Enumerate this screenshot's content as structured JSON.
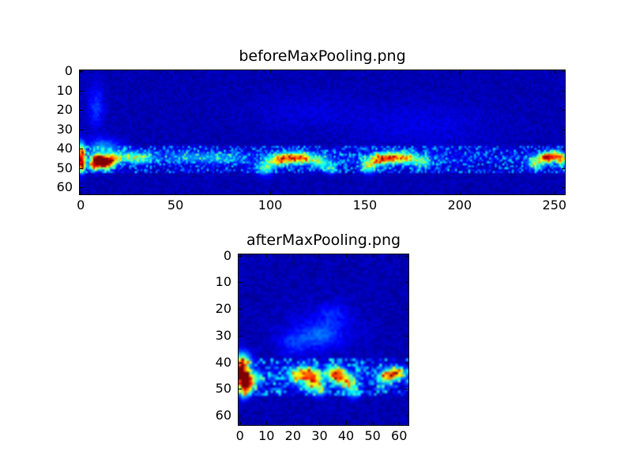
{
  "figure": {
    "background": "#ffffff",
    "frame_color": "#000000",
    "base_color_hex": "#000080"
  },
  "chart_data": [
    {
      "type": "heatmap",
      "title": "beforeMaxPooling.png",
      "xlabel": "",
      "ylabel": "",
      "colormap": "jet",
      "grid": false,
      "data_shape": [
        64,
        256
      ],
      "x_range": [
        -0.5,
        255.5
      ],
      "y_range": [
        -0.5,
        63.5
      ],
      "x_ticks": [
        0,
        50,
        100,
        150,
        200,
        250
      ],
      "y_ticks": [
        0,
        10,
        20,
        30,
        40,
        50,
        60
      ],
      "noise": {
        "seed": 7,
        "base": 0.02,
        "level": 0.06,
        "band_y": [
          39,
          52
        ],
        "band_boost": 0.3
      },
      "hotspots": [
        {
          "x": 0.5,
          "y": 44,
          "sx": 1.2,
          "sy": 4.5,
          "v": 0.8
        },
        {
          "x": 1,
          "y": 49,
          "sx": 1,
          "sy": 2,
          "v": 0.5
        },
        {
          "x": 9,
          "y": 45.5,
          "sx": 2.5,
          "sy": 1.8,
          "v": 0.95
        },
        {
          "x": 13,
          "y": 47.5,
          "sx": 3,
          "sy": 2,
          "v": 0.8
        },
        {
          "x": 17,
          "y": 45,
          "sx": 3,
          "sy": 2,
          "v": 0.5
        },
        {
          "x": 7,
          "y": 49,
          "sx": 2,
          "sy": 1.5,
          "v": 0.6
        },
        {
          "x": 12,
          "y": 39,
          "sx": 6,
          "sy": 3,
          "v": 0.22
        },
        {
          "x": 26,
          "y": 44,
          "sx": 4,
          "sy": 2,
          "v": 0.3
        },
        {
          "x": 33,
          "y": 45,
          "sx": 4,
          "sy": 2,
          "v": 0.25
        },
        {
          "x": 8,
          "y": 18,
          "sx": 3,
          "sy": 8,
          "v": 0.12
        },
        {
          "x": 55,
          "y": 44,
          "sx": 10,
          "sy": 2,
          "v": 0.15
        },
        {
          "x": 75,
          "y": 45,
          "sx": 8,
          "sy": 2,
          "v": 0.15
        },
        {
          "x": 97,
          "y": 50,
          "sx": 3,
          "sy": 2.5,
          "v": 0.35
        },
        {
          "x": 104,
          "y": 46,
          "sx": 3.5,
          "sy": 2,
          "v": 0.5
        },
        {
          "x": 111,
          "y": 44.5,
          "sx": 4,
          "sy": 2,
          "v": 0.55
        },
        {
          "x": 118,
          "y": 45,
          "sx": 3.5,
          "sy": 2,
          "v": 0.45
        },
        {
          "x": 126,
          "y": 47,
          "sx": 3,
          "sy": 2,
          "v": 0.35
        },
        {
          "x": 132,
          "y": 50,
          "sx": 2.5,
          "sy": 2,
          "v": 0.25
        },
        {
          "x": 152,
          "y": 49,
          "sx": 3,
          "sy": 2.5,
          "v": 0.4
        },
        {
          "x": 158,
          "y": 45.5,
          "sx": 3.5,
          "sy": 2,
          "v": 0.55
        },
        {
          "x": 165,
          "y": 44.5,
          "sx": 4,
          "sy": 2,
          "v": 0.5
        },
        {
          "x": 173,
          "y": 45,
          "sx": 4,
          "sy": 2,
          "v": 0.4
        },
        {
          "x": 181,
          "y": 47,
          "sx": 3,
          "sy": 2,
          "v": 0.3
        },
        {
          "x": 240,
          "y": 47,
          "sx": 3,
          "sy": 2.5,
          "v": 0.4
        },
        {
          "x": 246,
          "y": 44.5,
          "sx": 2.5,
          "sy": 1.8,
          "v": 0.8
        },
        {
          "x": 251,
          "y": 43.5,
          "sx": 2.5,
          "sy": 1.8,
          "v": 0.55
        },
        {
          "x": 254,
          "y": 46,
          "sx": 2,
          "sy": 2,
          "v": 0.4
        },
        {
          "x": 128,
          "y": 44.5,
          "sx": 75,
          "sy": 2.5,
          "v": 0.07
        },
        {
          "x": 180,
          "y": 28,
          "sx": 25,
          "sy": 8,
          "v": 0.05
        },
        {
          "x": 120,
          "y": 20,
          "sx": 20,
          "sy": 6,
          "v": 0.04
        }
      ]
    },
    {
      "type": "heatmap",
      "title": "afterMaxPooling.png",
      "xlabel": "",
      "ylabel": "",
      "colormap": "jet",
      "grid": false,
      "data_shape": [
        64,
        64
      ],
      "x_range": [
        -0.5,
        63.5
      ],
      "y_range": [
        -0.5,
        63.5
      ],
      "x_ticks": [
        0,
        10,
        20,
        30,
        40,
        50,
        60
      ],
      "y_ticks": [
        0,
        10,
        20,
        30,
        40,
        50,
        60
      ],
      "noise": {
        "seed": 13,
        "base": 0.02,
        "level": 0.06,
        "band_y": [
          39,
          52
        ],
        "band_boost": 0.35
      },
      "hotspots": [
        {
          "x": 0.5,
          "y": 44,
          "sx": 1,
          "sy": 4,
          "v": 0.8
        },
        {
          "x": 2.2,
          "y": 45.5,
          "sx": 1.3,
          "sy": 1.6,
          "v": 0.95
        },
        {
          "x": 3,
          "y": 48.5,
          "sx": 1.5,
          "sy": 1.5,
          "v": 0.7
        },
        {
          "x": 2,
          "y": 40,
          "sx": 1.8,
          "sy": 2.5,
          "v": 0.4
        },
        {
          "x": 2,
          "y": 51,
          "sx": 1.5,
          "sy": 2,
          "v": 0.35
        },
        {
          "x": 6,
          "y": 46,
          "sx": 1.8,
          "sy": 1.8,
          "v": 0.35
        },
        {
          "x": 21,
          "y": 45,
          "sx": 2,
          "sy": 1.8,
          "v": 0.4
        },
        {
          "x": 25,
          "y": 44,
          "sx": 2.2,
          "sy": 1.8,
          "v": 0.5
        },
        {
          "x": 28,
          "y": 46,
          "sx": 2,
          "sy": 2,
          "v": 0.45
        },
        {
          "x": 30,
          "y": 50,
          "sx": 1.8,
          "sy": 2,
          "v": 0.3
        },
        {
          "x": 26,
          "y": 49,
          "sx": 2,
          "sy": 1.5,
          "v": 0.3
        },
        {
          "x": 35,
          "y": 44,
          "sx": 2,
          "sy": 1.8,
          "v": 0.45
        },
        {
          "x": 38,
          "y": 45.5,
          "sx": 2.2,
          "sy": 2,
          "v": 0.5
        },
        {
          "x": 41,
          "y": 48,
          "sx": 1.8,
          "sy": 2,
          "v": 0.35
        },
        {
          "x": 43,
          "y": 51,
          "sx": 1.5,
          "sy": 1.8,
          "v": 0.25
        },
        {
          "x": 54,
          "y": 46,
          "sx": 1.8,
          "sy": 1.8,
          "v": 0.35
        },
        {
          "x": 57,
          "y": 44.5,
          "sx": 1.8,
          "sy": 1.6,
          "v": 0.6
        },
        {
          "x": 60,
          "y": 44,
          "sx": 1.6,
          "sy": 1.5,
          "v": 0.45
        },
        {
          "x": 30,
          "y": 30,
          "sx": 5,
          "sy": 3,
          "v": 0.12
        },
        {
          "x": 35,
          "y": 22,
          "sx": 4,
          "sy": 3,
          "v": 0.08
        },
        {
          "x": 20,
          "y": 33,
          "sx": 4,
          "sy": 3,
          "v": 0.1
        },
        {
          "x": 30,
          "y": 28,
          "sx": 10,
          "sy": 6,
          "v": 0.06
        },
        {
          "x": 32,
          "y": 45,
          "sx": 20,
          "sy": 2.5,
          "v": 0.06
        }
      ]
    }
  ]
}
